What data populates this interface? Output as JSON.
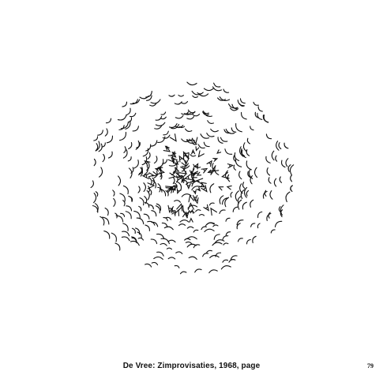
{
  "artwork": {
    "description_name": "concrete-poem-scattered-glyphs",
    "ink_color": "#111111"
  },
  "caption": "De Vree: Zimprovisaties, 1968, page",
  "page_number": "79"
}
